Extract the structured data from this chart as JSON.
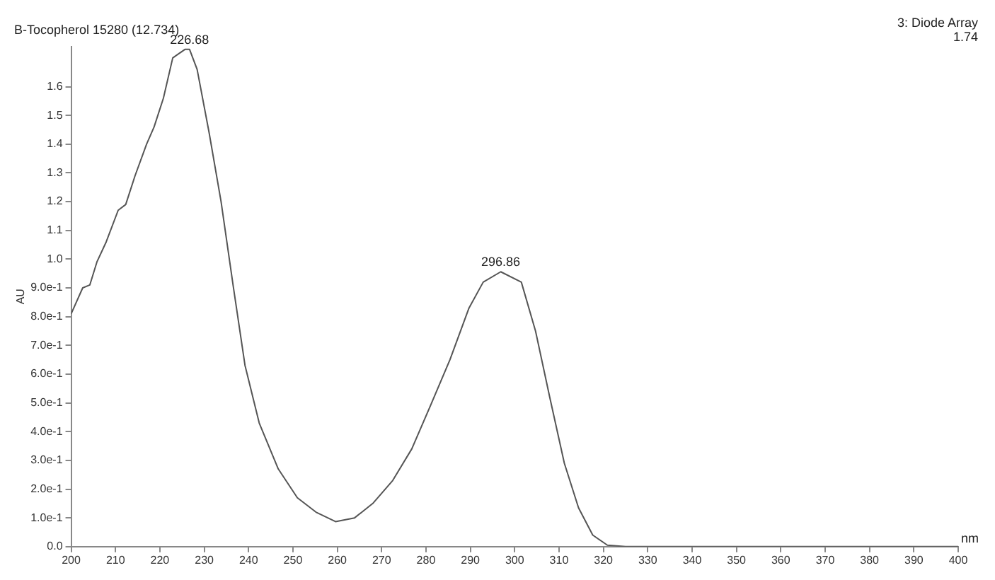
{
  "chart_data": {
    "type": "line",
    "title": "B-Tocopherol 15280 (12.734)",
    "xlabel": "nm",
    "ylabel": "AU",
    "annotations": [
      "3: Diode Array",
      "1.74",
      {
        "text": "226.68",
        "x": 226.68,
        "y": 1.73
      },
      {
        "text": "296.86",
        "x": 296.86,
        "y": 0.956
      }
    ],
    "series": [
      {
        "color": "#555555",
        "x": [
          200,
          202.6,
          204.2,
          205.8,
          207.9,
          210.6,
          212.3,
          214.4,
          217,
          218.7,
          220.8,
          222.9,
          225.7,
          226.68,
          228.4,
          231.1,
          233.8,
          236.5,
          239.2,
          242.4,
          246.7,
          251,
          255.2,
          259.6,
          263.9,
          268,
          272.5,
          276.8,
          281,
          285.4,
          289.7,
          292.9,
          296.86,
          301.5,
          304.7,
          307.9,
          311.2,
          314.4,
          317.6,
          320.9,
          325,
          340,
          360,
          380,
          400
        ],
        "values": [
          0.81,
          0.9,
          0.91,
          0.99,
          1.06,
          1.17,
          1.19,
          1.29,
          1.4,
          1.46,
          1.56,
          1.7,
          1.73,
          1.73,
          1.66,
          1.44,
          1.2,
          0.91,
          0.63,
          0.43,
          0.27,
          0.17,
          0.12,
          0.087,
          0.1,
          0.15,
          0.23,
          0.34,
          0.49,
          0.65,
          0.83,
          0.92,
          0.956,
          0.92,
          0.75,
          0.52,
          0.29,
          0.135,
          0.04,
          0.005,
          0,
          0,
          0,
          0,
          0
        ]
      }
    ],
    "xlim": [
      200,
      400
    ],
    "xticks": [
      200,
      210,
      220,
      230,
      240,
      250,
      260,
      270,
      280,
      290,
      300,
      310,
      320,
      330,
      340,
      350,
      360,
      370,
      380,
      390,
      400
    ],
    "ylim": [
      0,
      1.74
    ],
    "yticks": [
      {
        "value": 0,
        "label": "0.0"
      },
      {
        "value": 0.1,
        "label": "1.0e-1"
      },
      {
        "value": 0.2,
        "label": "2.0e-1"
      },
      {
        "value": 0.3,
        "label": "3.0e-1"
      },
      {
        "value": 0.4,
        "label": "4.0e-1"
      },
      {
        "value": 0.5,
        "label": "5.0e-1"
      },
      {
        "value": 0.6,
        "label": "6.0e-1"
      },
      {
        "value": 0.7,
        "label": "7.0e-1"
      },
      {
        "value": 0.8,
        "label": "8.0e-1"
      },
      {
        "value": 0.9,
        "label": "9.0e-1"
      },
      {
        "value": 1,
        "label": "1.0"
      },
      {
        "value": 1.1,
        "label": "1.1"
      },
      {
        "value": 1.2,
        "label": "1.2"
      },
      {
        "value": 1.3,
        "label": "1.3"
      },
      {
        "value": 1.4,
        "label": "1.4"
      },
      {
        "value": 1.5,
        "label": "1.5"
      },
      {
        "value": 1.6,
        "label": "1.6"
      }
    ],
    "grid": false,
    "legend": false,
    "marker": "none",
    "line_style": "solid"
  }
}
